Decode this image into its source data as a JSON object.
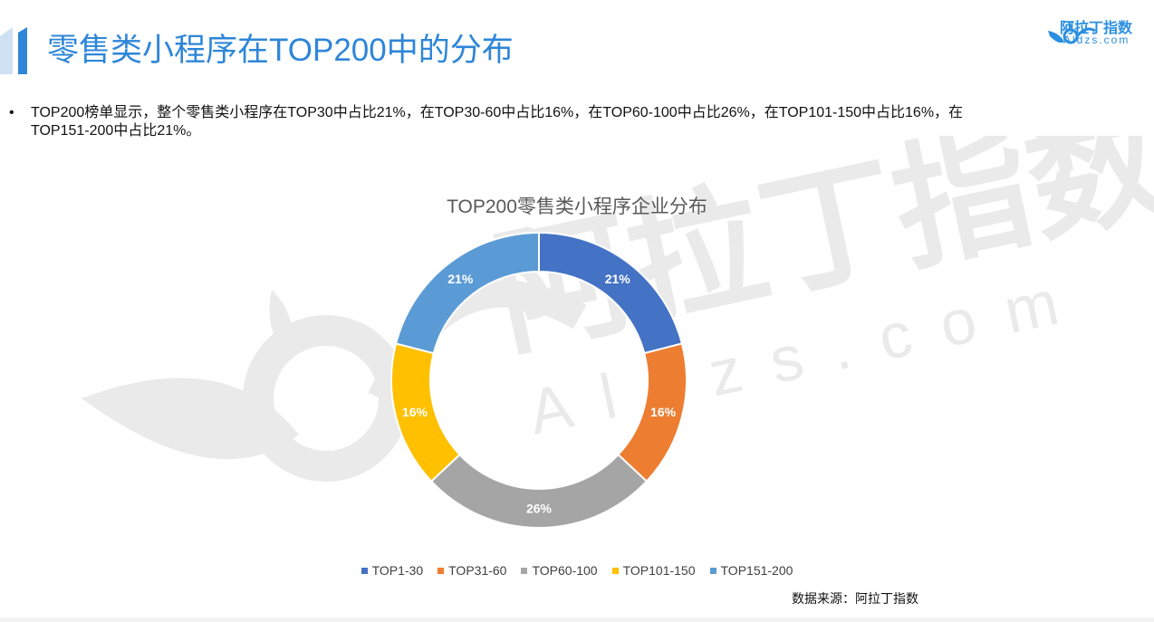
{
  "header": {
    "title": "零售类小程序在TOP200中的分布",
    "logo_cn": "阿拉丁指数",
    "logo_en": "Aldzs.com"
  },
  "bullet": {
    "marker": "•",
    "text": "TOP200榜单显示，整个零售类小程序在TOP30中占比21%，在TOP30-60中占比16%，在TOP60-100中占比26%，在TOP101-150中占比16%，在TOP151-200中占比21%。"
  },
  "watermark": {
    "cn": "阿拉丁指数",
    "en": "Aldzs.com"
  },
  "chart_data": {
    "type": "pie",
    "title": "TOP200零售类小程序企业分布",
    "categories": [
      "TOP1-30",
      "TOP31-60",
      "TOP60-100",
      "TOP101-150",
      "TOP151-200"
    ],
    "values": [
      21,
      16,
      26,
      16,
      21
    ],
    "labels": [
      "21%",
      "16%",
      "26%",
      "16%",
      "21%"
    ],
    "colors": [
      "#4472c4",
      "#ed7d31",
      "#a5a5a5",
      "#ffc000",
      "#5b9bd5"
    ],
    "donut": true,
    "legend_position": "bottom"
  },
  "source": "数据来源：阿拉丁指数"
}
